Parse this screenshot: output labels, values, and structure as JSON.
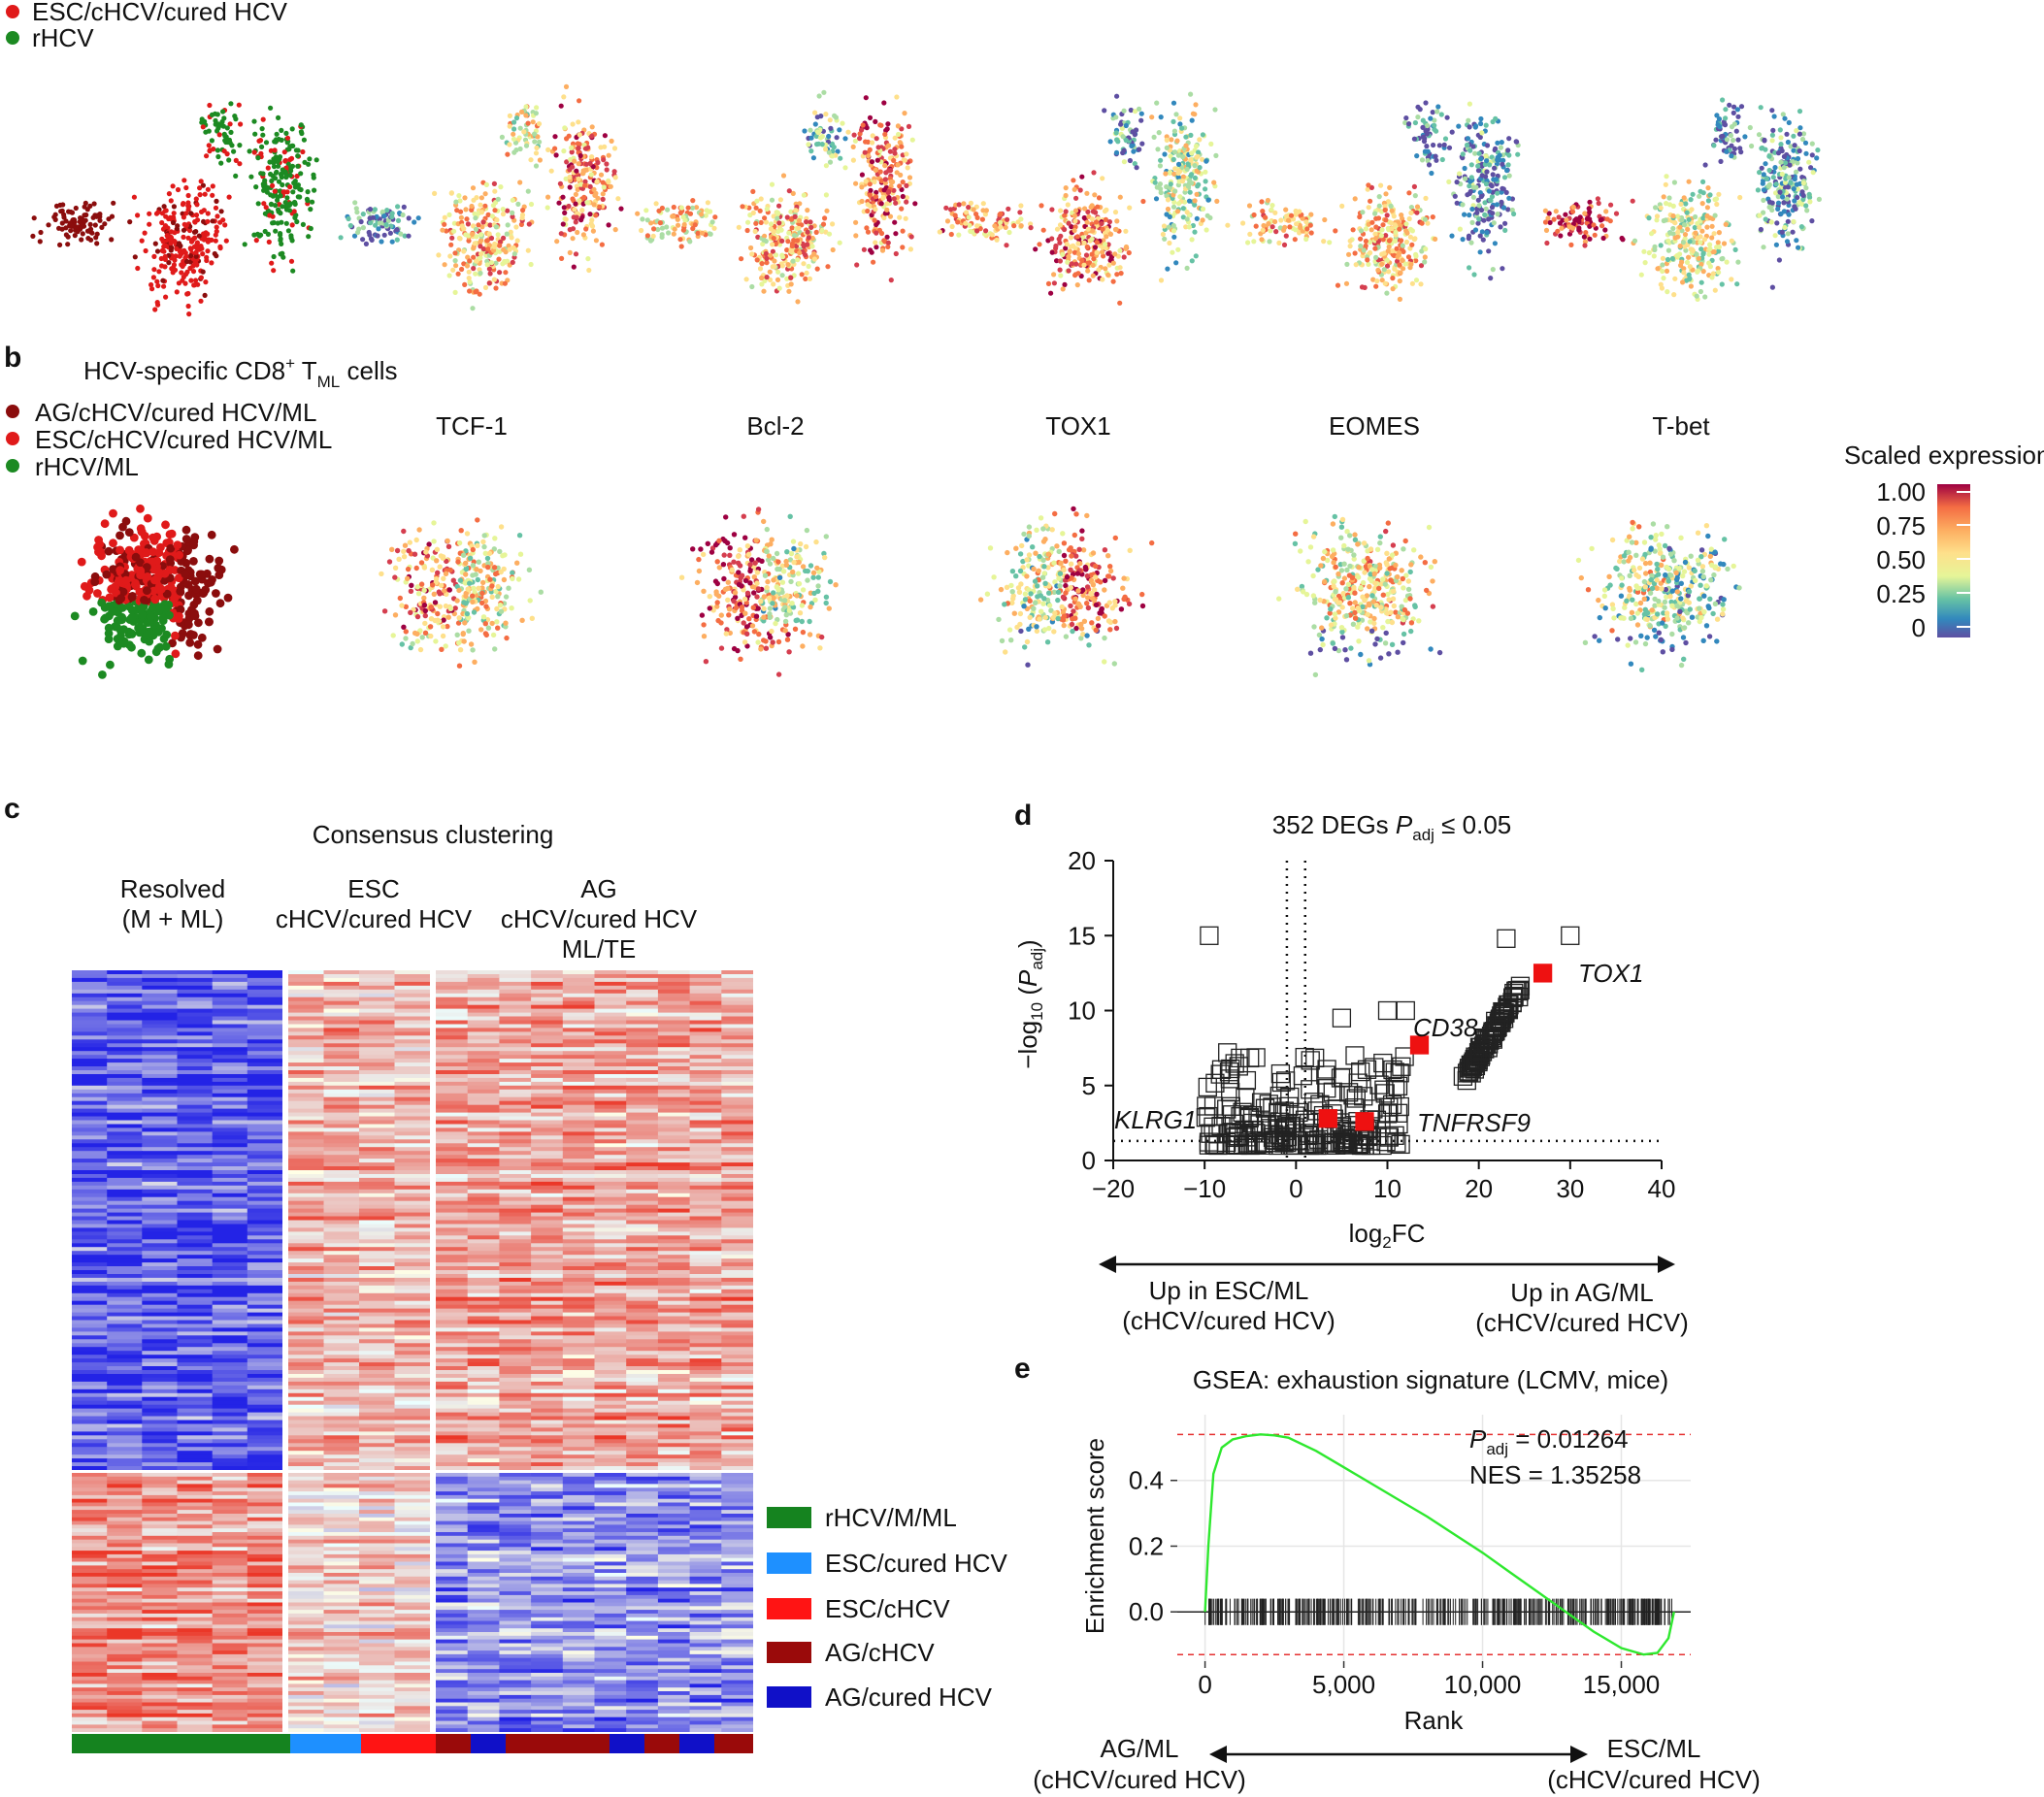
{
  "panel_a": {
    "legend": [
      "ESC/cHCV/cured HCV",
      "rHCV"
    ],
    "legend_colors": [
      "#e01a1a",
      "#1c8a22"
    ]
  },
  "panel_b": {
    "letter": "b",
    "title_pre": "HCV-specific CD8",
    "title_sup": "+",
    "title_mid": " T",
    "title_sub": "ML",
    "title_post": " cells",
    "legend": [
      "AG/cHCV/cured HCV/ML",
      "ESC/cHCV/cured HCV/ML",
      "rHCV/ML"
    ],
    "legend_colors": [
      "#8b0d0d",
      "#e01a1a",
      "#1c8a22"
    ],
    "markers": [
      "TCF-1",
      "Bcl-2",
      "TOX1",
      "EOMES",
      "T-bet"
    ],
    "colorbar_title": "Scaled expression",
    "colorbar_ticks": [
      "1.00",
      "0.75",
      "0.50",
      "0.25",
      "0"
    ]
  },
  "panel_c": {
    "letter": "c",
    "title": "Consensus clustering",
    "group1": [
      "Resolved",
      "(M + ML)"
    ],
    "group2": [
      "ESC",
      "cHCV/cured HCV"
    ],
    "group3": [
      "AG",
      "cHCV/cured HCV",
      "ML/TE"
    ],
    "legend": [
      {
        "label": "rHCV/M/ML",
        "color": "#15831f"
      },
      {
        "label": "ESC/cured HCV",
        "color": "#1e90ff"
      },
      {
        "label": "ESC/cHCV",
        "color": "#ff1414"
      },
      {
        "label": "AG/cHCV",
        "color": "#9a0a0a"
      },
      {
        "label": "AG/cured HCV",
        "color": "#1010c8"
      }
    ],
    "annotation_bar": [
      "rHCV/M/ML",
      "ESC/cured HCV",
      "ESC/cHCV",
      "AG/cHCV",
      "AG/cured HCV",
      "AG/cHCV",
      "AG/cured HCV",
      "AG/cHCV",
      "AG/cured HCV",
      "AG/cHCV"
    ]
  },
  "chart_data": [
    {
      "panel": "d",
      "type": "scatter",
      "title_pre": "352 DEGs ",
      "title_p": "P",
      "title_sub": "adj",
      "title_post": " ≤ 0.05",
      "xlabel_pre": "log",
      "xlabel_sub": "2",
      "xlabel_post": "FC",
      "ylabel_pre": "−log",
      "ylabel_sub": "10",
      "ylabel_paren_open": " (",
      "ylabel_p": "P",
      "ylabel_p_sub": "adj",
      "ylabel_paren_close": ")",
      "xlim": [
        -20,
        40
      ],
      "ylim": [
        0,
        20
      ],
      "xticks": [
        "−20",
        "−10",
        "0",
        "10",
        "20",
        "30",
        "40"
      ],
      "yticks": [
        "0",
        "5",
        "10",
        "15",
        "20"
      ],
      "highlighted": [
        {
          "gene": "TOX1",
          "x": 27,
          "y": 12.5
        },
        {
          "gene": "CD38",
          "x": 13.5,
          "y": 7.7
        },
        {
          "gene": "TNFRSF9",
          "x": 7.5,
          "y": 2.6
        },
        {
          "gene": "KLRG1",
          "x": 3.5,
          "y": 2.8
        }
      ],
      "threshold_lines": {
        "x": [
          -1,
          1
        ],
        "y": 1.3
      },
      "arrow_left": [
        "Up in ESC/ML",
        "(cHCV/cured HCV)"
      ],
      "arrow_right": [
        "Up in AG/ML",
        "(cHCV/cured HCV)"
      ]
    },
    {
      "panel": "e",
      "type": "line",
      "title": "GSEA: exhaustion signature (LCMV, mice)",
      "xlabel": "Rank",
      "ylabel": "Enrichment score",
      "xlim": [
        -1000,
        17500
      ],
      "ylim": [
        -0.15,
        0.6
      ],
      "xticks": [
        "0",
        "5,000",
        "10,000",
        "15,000"
      ],
      "yticks": [
        "0.0",
        "0.2",
        "0.4"
      ],
      "padj_label": "P",
      "padj_sub": "adj",
      "padj_value": " = 0.01264",
      "nes": "NES = 1.35258",
      "x": [
        0,
        120,
        300,
        600,
        1000,
        1500,
        2000,
        2500,
        3000,
        4000,
        5000,
        6000,
        7000,
        8000,
        9000,
        10000,
        11000,
        12000,
        13000,
        14000,
        15000,
        15800,
        16300,
        16700,
        16900
      ],
      "y": [
        0.0,
        0.2,
        0.42,
        0.5,
        0.525,
        0.535,
        0.54,
        0.537,
        0.53,
        0.49,
        0.44,
        0.39,
        0.34,
        0.29,
        0.235,
        0.18,
        0.12,
        0.06,
        0.0,
        -0.06,
        -0.11,
        -0.13,
        -0.125,
        -0.08,
        0.0
      ],
      "ref_lines": [
        0.54,
        -0.13
      ],
      "arrow_left": [
        "AG/ML",
        "(cHCV/cured HCV)"
      ],
      "arrow_right": [
        "ESC/ML",
        "(cHCV/cured HCV)"
      ]
    }
  ]
}
